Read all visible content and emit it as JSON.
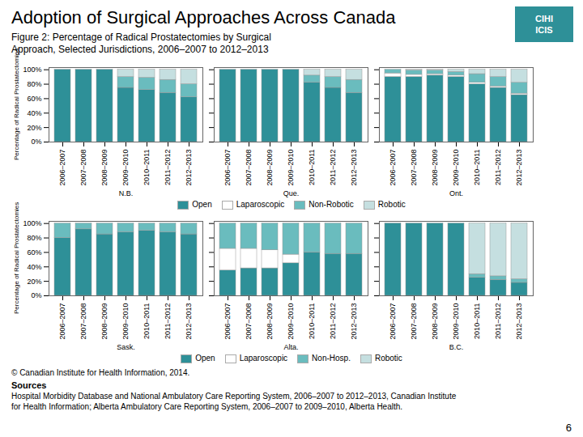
{
  "title": "Adoption of Surgical Approaches Across Canada",
  "subtitle": "Figure 2:  Percentage of Radical Prostatectomies by Surgical\nApproach, Selected Jurisdictions, 2006–2007 to 2012–2013",
  "annotations": [
    "CIHI",
    "ICIS",
    "Sources",
    "Hospital Morbidity Database and National Ambulatory Care Reporting System, 2006–2007 to 2012–2013, Canadian Institute\nfor Health Information; Alberta Ambulatory Care Reporting System, 2006–2007 to 2009–2010, Alberta Health.",
    "© Canadian Institute for Health Information, 2014.",
    "6"
  ],
  "chart_data": [
    {
      "type": "bar",
      "stacked": true,
      "xlabel": "N.B.",
      "ylabel": "Percentage of Radical Prostatectomies",
      "categories": [
        "2006–2007",
        "2007–2008",
        "2008–2009",
        "2009–2010",
        "2010–2011",
        "2011–2012",
        "2012–2013"
      ],
      "series": [
        {
          "name": "Open",
          "color": "#2e9098",
          "values": [
            100,
            100,
            100,
            75,
            72,
            68,
            62
          ]
        },
        {
          "name": "Laparoscopic",
          "color": "#ffffff",
          "values": [
            0,
            0,
            0,
            0,
            0,
            0,
            0
          ]
        },
        {
          "name": "Non-Robotic",
          "color": "#6abcbe",
          "values": [
            0,
            0,
            0,
            15,
            17,
            18,
            18
          ]
        },
        {
          "name": "Robotic",
          "color": "#c5dfe0",
          "values": [
            0,
            0,
            0,
            10,
            11,
            14,
            20
          ]
        }
      ],
      "ylim": [
        0,
        103
      ],
      "yticks": [
        {
          "value": 0,
          "label": "0%"
        },
        {
          "value": 20,
          "label": "20%"
        },
        {
          "value": 40,
          "label": "40%"
        },
        {
          "value": 60,
          "label": "60%"
        },
        {
          "value": 80,
          "label": "80%"
        },
        {
          "value": 100,
          "label": "100%"
        }
      ],
      "grid": false
    },
    {
      "type": "bar",
      "stacked": true,
      "xlabel": "Que.",
      "categories": [
        "2006–2007",
        "2007–2008",
        "2008–2009",
        "2009–2010",
        "2010–2011",
        "2011–2012",
        "2012–2013"
      ],
      "series": [
        {
          "name": "Open",
          "color": "#2e9098",
          "values": [
            100,
            100,
            100,
            100,
            82,
            75,
            68
          ]
        },
        {
          "name": "Laparoscopic",
          "color": "#ffffff",
          "values": [
            0,
            0,
            0,
            0,
            0,
            0,
            0
          ]
        },
        {
          "name": "Non-Robotic",
          "color": "#6abcbe",
          "values": [
            0,
            0,
            0,
            0,
            10,
            15,
            18
          ]
        },
        {
          "name": "Robotic",
          "color": "#c5dfe0",
          "values": [
            0,
            0,
            0,
            0,
            8,
            10,
            14
          ]
        }
      ],
      "ylim": [
        0,
        103
      ],
      "yticks": [
        0,
        20,
        40,
        60,
        80,
        100
      ],
      "grid": false,
      "tick_labels": "x",
      "legend": "bottom"
    },
    {
      "type": "bar",
      "stacked": true,
      "xlabel": "Ont.",
      "categories": [
        "2006–2007",
        "2007–2008",
        "2008–2009",
        "2009–2010",
        "2010–2011",
        "2011–2012",
        "2012–2013"
      ],
      "series": [
        {
          "name": "Open",
          "color": "#2e9098",
          "values": [
            90,
            90,
            92,
            90,
            80,
            75,
            65
          ]
        },
        {
          "name": "Laparoscopic",
          "color": "#ffffff",
          "values": [
            5,
            3,
            2,
            2,
            2,
            2,
            2
          ]
        },
        {
          "name": "Non-Robotic",
          "color": "#6abcbe",
          "values": [
            5,
            6,
            5,
            5,
            12,
            13,
            15
          ]
        },
        {
          "name": "Robotic",
          "color": "#c5dfe0",
          "values": [
            0,
            1,
            1,
            3,
            6,
            10,
            18
          ]
        }
      ],
      "ylim": [
        0,
        103
      ],
      "yticks": [
        0,
        20,
        40,
        60,
        80,
        100
      ],
      "grid": false,
      "tick_labels": "x"
    },
    {
      "type": "bar",
      "stacked": true,
      "xlabel": "Sask.",
      "ylabel": "Percentage of Radical Prostatectomies",
      "categories": [
        "2006–2007",
        "2007–2008",
        "2008–2009",
        "2009–2010",
        "2010–2011",
        "2011–2012",
        "2012–2013"
      ],
      "series": [
        {
          "name": "Open",
          "color": "#2e9098",
          "values": [
            80,
            92,
            85,
            88,
            90,
            88,
            85
          ]
        },
        {
          "name": "Laparoscopic",
          "color": "#ffffff",
          "values": [
            0,
            0,
            0,
            0,
            0,
            0,
            0
          ]
        },
        {
          "name": "Non-Hosp.",
          "color": "#6abcbe",
          "values": [
            20,
            8,
            15,
            12,
            10,
            12,
            15
          ]
        },
        {
          "name": "Robotic",
          "color": "#c5dfe0",
          "values": [
            0,
            0,
            0,
            0,
            0,
            0,
            0
          ]
        }
      ],
      "ylim": [
        0,
        103
      ],
      "yticks": [
        {
          "value": 0,
          "label": "0%"
        },
        {
          "value": 20,
          "label": "20%"
        },
        {
          "value": 40,
          "label": "40%"
        },
        {
          "value": 60,
          "label": "60%"
        },
        {
          "value": 80,
          "label": "80%"
        },
        {
          "value": 100,
          "label": "100%"
        }
      ],
      "grid": false
    },
    {
      "type": "bar",
      "stacked": true,
      "xlabel": "Alta.",
      "categories": [
        "2006–2007",
        "2007–2008",
        "2008–2009",
        "2009–2010",
        "2010–2011",
        "2011–2012",
        "2012–2013"
      ],
      "series": [
        {
          "name": "Open",
          "color": "#2e9098",
          "values": [
            35,
            38,
            38,
            45,
            60,
            58,
            58
          ]
        },
        {
          "name": "Laparoscopic",
          "color": "#ffffff",
          "values": [
            30,
            27,
            25,
            12,
            0,
            0,
            0
          ]
        },
        {
          "name": "Non-Hosp.",
          "color": "#6abcbe",
          "values": [
            35,
            35,
            37,
            43,
            40,
            42,
            42
          ]
        },
        {
          "name": "Robotic",
          "color": "#c5dfe0",
          "values": [
            0,
            0,
            0,
            0,
            0,
            0,
            0
          ]
        }
      ],
      "ylim": [
        0,
        103
      ],
      "yticks": [
        0,
        20,
        40,
        60,
        80,
        100
      ],
      "grid": false,
      "tick_labels": "x",
      "legend": "bottom"
    },
    {
      "type": "bar",
      "stacked": true,
      "xlabel": "B.C.",
      "categories": [
        "2006–2007",
        "2007–2008",
        "2008–2009",
        "2009–2010",
        "2010–2011",
        "2011–2012",
        "2012–2013"
      ],
      "series": [
        {
          "name": "Open",
          "color": "#2e9098",
          "values": [
            100,
            100,
            100,
            100,
            25,
            22,
            18
          ]
        },
        {
          "name": "Laparoscopic",
          "color": "#ffffff",
          "values": [
            0,
            0,
            0,
            0,
            0,
            0,
            0
          ]
        },
        {
          "name": "Non-Hosp.",
          "color": "#6abcbe",
          "values": [
            0,
            0,
            0,
            0,
            5,
            5,
            5
          ]
        },
        {
          "name": "Robotic",
          "color": "#c5dfe0",
          "values": [
            0,
            0,
            0,
            0,
            70,
            73,
            77
          ]
        }
      ],
      "ylim": [
        0,
        103
      ],
      "yticks": [
        0,
        20,
        40,
        60,
        80,
        100
      ],
      "grid": false,
      "tick_labels": "x"
    }
  ]
}
